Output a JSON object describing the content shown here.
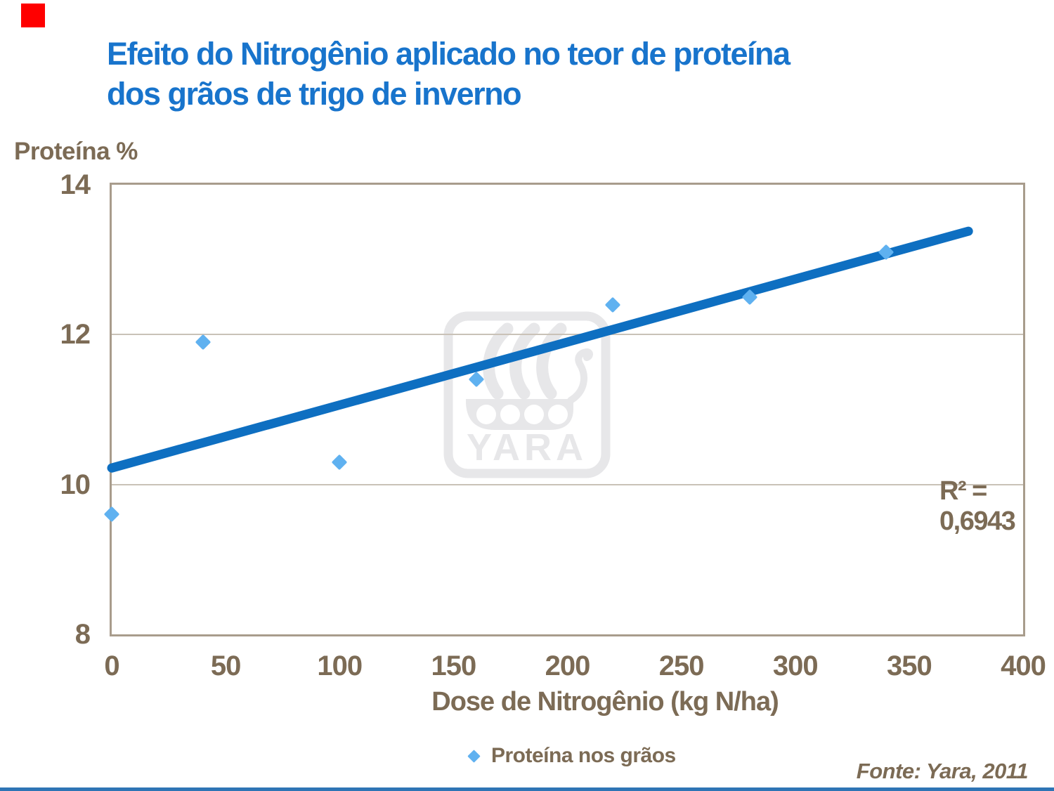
{
  "slide": {
    "title_line1": "Efeito do Nitrogênio aplicado no teor de proteína",
    "title_line2": "dos grãos de trigo de inverno",
    "source_text": "Fonte: Yara, 2011"
  },
  "chart": {
    "y_axis_title": "Proteína %",
    "x_axis_title": "Dose de Nitrogênio (kg N/ha)",
    "r_squared_label": "R² = 0,6943",
    "legend_label": "Proteína nos grãos",
    "watermark_text": "YARA"
  },
  "chart_data": {
    "type": "scatter",
    "title": "Efeito do Nitrogênio aplicado no teor de proteína dos grãos de trigo de inverno",
    "xlabel": "Dose de Nitrogênio (kg N/ha)",
    "ylabel": "Proteína %",
    "series": [
      {
        "name": "Proteína nos grãos",
        "x": [
          0,
          40,
          100,
          160,
          220,
          280,
          340
        ],
        "y": [
          9.6,
          11.9,
          10.3,
          11.4,
          12.4,
          12.5,
          13.1
        ]
      }
    ],
    "trendline": {
      "type": "linear",
      "x_start": 0,
      "y_start": 10.22,
      "x_end": 376,
      "y_end": 13.38,
      "r_squared": 0.6943,
      "label": "R² = 0,6943"
    },
    "xlim": [
      0,
      400
    ],
    "ylim": [
      8,
      14
    ],
    "x_ticks": [
      0,
      50,
      100,
      150,
      200,
      250,
      300,
      350,
      400
    ],
    "y_ticks": [
      14,
      12,
      10,
      8
    ],
    "gridlines_y": [
      12,
      10
    ],
    "grid": "horizontal-only",
    "legend_position": "bottom",
    "source": "Fonte: Yara, 2011"
  },
  "colors": {
    "title_blue": "#1874CC",
    "trendline_blue": "#0E6FC1",
    "point_blue": "#5FB1F0",
    "text_brown": "#7C6B55",
    "axis_border": "#A89C8C",
    "gridline": "#C9C2B7",
    "watermark_gray": "#E7E7E9",
    "accent_red": "#FF0000",
    "bottom_line_blue": "#2E74B5"
  }
}
